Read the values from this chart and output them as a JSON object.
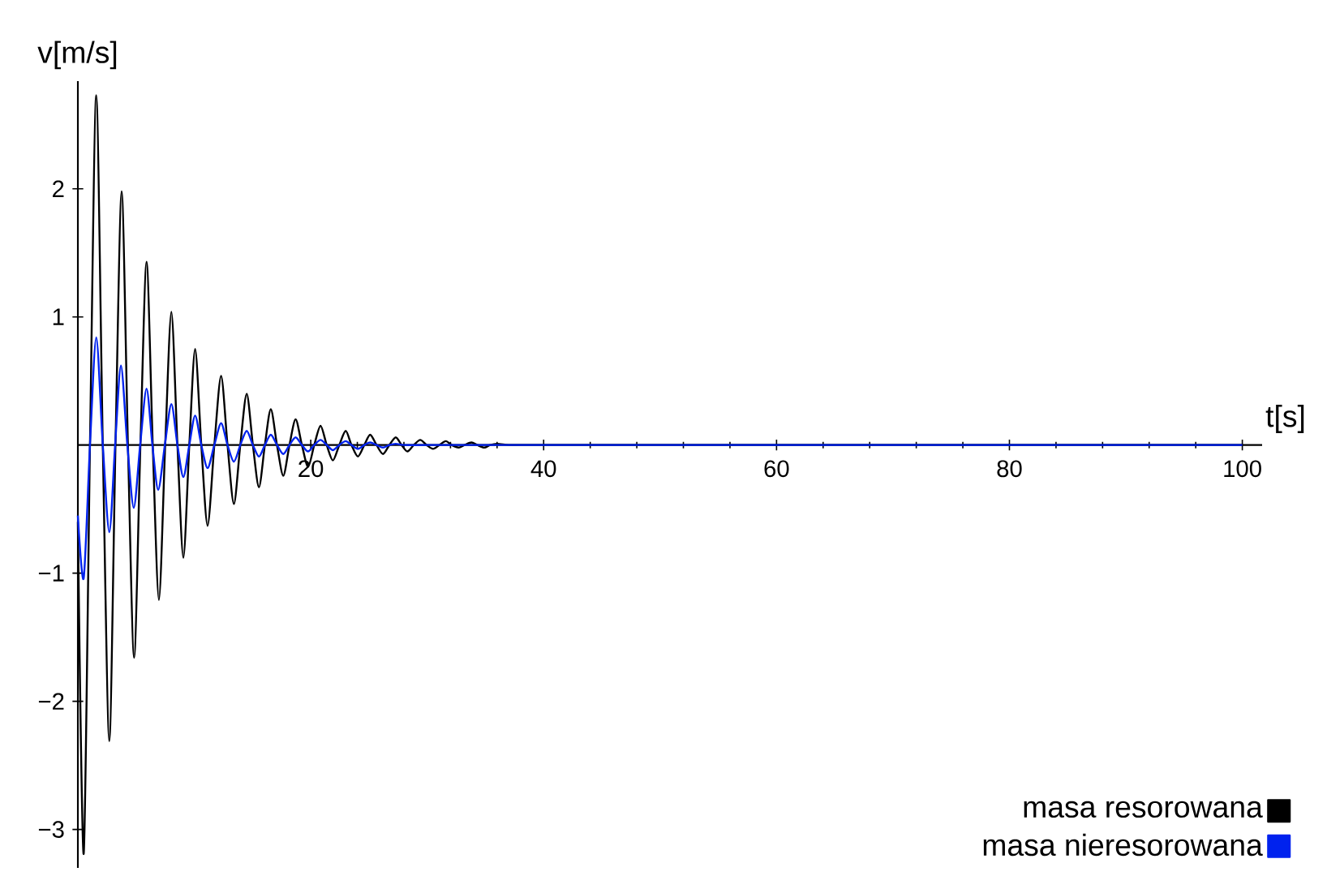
{
  "chart_data": {
    "type": "line",
    "xlabel": "t[s]",
    "ylabel": "v[m/s]",
    "xlim": [
      0,
      101.7
    ],
    "ylim": [
      -3.3,
      2.84
    ],
    "xticks": [
      20,
      40,
      60,
      80,
      100
    ],
    "yticks": [
      {
        "value": -3,
        "label": "−3"
      },
      {
        "value": -2,
        "label": "−2"
      },
      {
        "value": -1,
        "label": "−1"
      },
      1,
      2
    ],
    "legend": "bottom right",
    "grid": false,
    "marker": "none",
    "line_style": "solid",
    "series": [
      {
        "name": "masa  resorowana",
        "color": "#000000",
        "x": [
          0,
          0.5,
          1.04,
          1.58,
          2.14,
          2.7,
          3.23,
          3.76,
          4.3,
          4.83,
          5.37,
          5.9,
          6.43,
          6.96,
          7.5,
          8.03,
          8.55,
          9.06,
          9.57,
          10.07,
          10.6,
          11.14,
          11.72,
          12.3,
          12.85,
          13.4,
          13.95,
          14.5,
          15.03,
          15.55,
          16.06,
          16.57,
          17.1,
          17.64,
          18.17,
          18.7,
          19.24,
          19.77,
          20.3,
          20.84,
          21.37,
          21.9,
          22.45,
          23.0,
          23.5,
          24.05,
          24.6,
          25.1,
          25.65,
          26.2,
          26.75,
          27.3,
          27.8,
          28.3,
          28.85,
          29.4,
          29.95,
          30.5,
          31.05,
          31.6,
          32.1,
          32.7,
          33.2,
          33.8,
          34.3,
          34.9,
          35.4,
          36.0,
          37.0,
          38.0,
          40.0,
          50.0,
          60.0,
          70.0,
          80.0,
          90.0,
          100.0
        ],
        "values": [
          -0.6,
          -3.19,
          0,
          2.73,
          0,
          -2.31,
          0,
          1.98,
          0,
          -1.66,
          0,
          1.43,
          0,
          -1.21,
          0,
          1.04,
          0,
          -0.88,
          0,
          0.75,
          0,
          -0.63,
          0,
          0.54,
          0,
          -0.46,
          0,
          0.4,
          0,
          -0.33,
          0,
          0.28,
          0,
          -0.24,
          0,
          0.2,
          0,
          -0.17,
          0,
          0.15,
          0,
          -0.12,
          0,
          0.11,
          0,
          -0.09,
          0,
          0.08,
          0,
          -0.07,
          0,
          0.06,
          0,
          -0.05,
          0,
          0.04,
          0,
          -0.03,
          0,
          0.03,
          0,
          -0.02,
          0,
          0.02,
          0,
          -0.02,
          0,
          0.01,
          0,
          0,
          0,
          0,
          0,
          0,
          0,
          0,
          0
        ]
      },
      {
        "name": "masa nieresorowana",
        "color": "#0022ee",
        "x": [
          0,
          0.5,
          1.04,
          1.58,
          2.14,
          2.7,
          3.2,
          3.7,
          4.25,
          4.8,
          5.35,
          5.9,
          6.4,
          6.9,
          7.47,
          8.03,
          8.55,
          9.06,
          9.57,
          10.07,
          10.6,
          11.14,
          11.72,
          12.3,
          12.85,
          13.4,
          13.95,
          14.5,
          15.03,
          15.55,
          16.06,
          16.57,
          17.1,
          17.64,
          18.17,
          18.7,
          19.24,
          19.77,
          20.3,
          20.84,
          21.37,
          21.9,
          22.45,
          23.0,
          23.5,
          24.05,
          24.6,
          25.1,
          25.65,
          26.2,
          26.75,
          27.3,
          28.0,
          30.0,
          35.0,
          40.0,
          50.0,
          60.0,
          70.0,
          80.0,
          90.0,
          100.0
        ],
        "values": [
          -0.55,
          -1.04,
          0,
          0.84,
          0,
          -0.68,
          0,
          0.62,
          0,
          -0.49,
          0,
          0.44,
          0,
          -0.35,
          0,
          0.32,
          0,
          -0.25,
          0,
          0.23,
          0,
          -0.18,
          0,
          0.17,
          0,
          -0.13,
          0,
          0.11,
          0,
          -0.09,
          0,
          0.08,
          0,
          -0.07,
          0,
          0.06,
          0,
          -0.05,
          0,
          0.04,
          0,
          -0.04,
          0,
          0.03,
          0,
          -0.03,
          0,
          0.02,
          0,
          -0.02,
          0,
          0.01,
          0,
          0,
          0,
          0,
          0,
          0,
          0,
          0,
          0,
          0
        ]
      }
    ]
  }
}
